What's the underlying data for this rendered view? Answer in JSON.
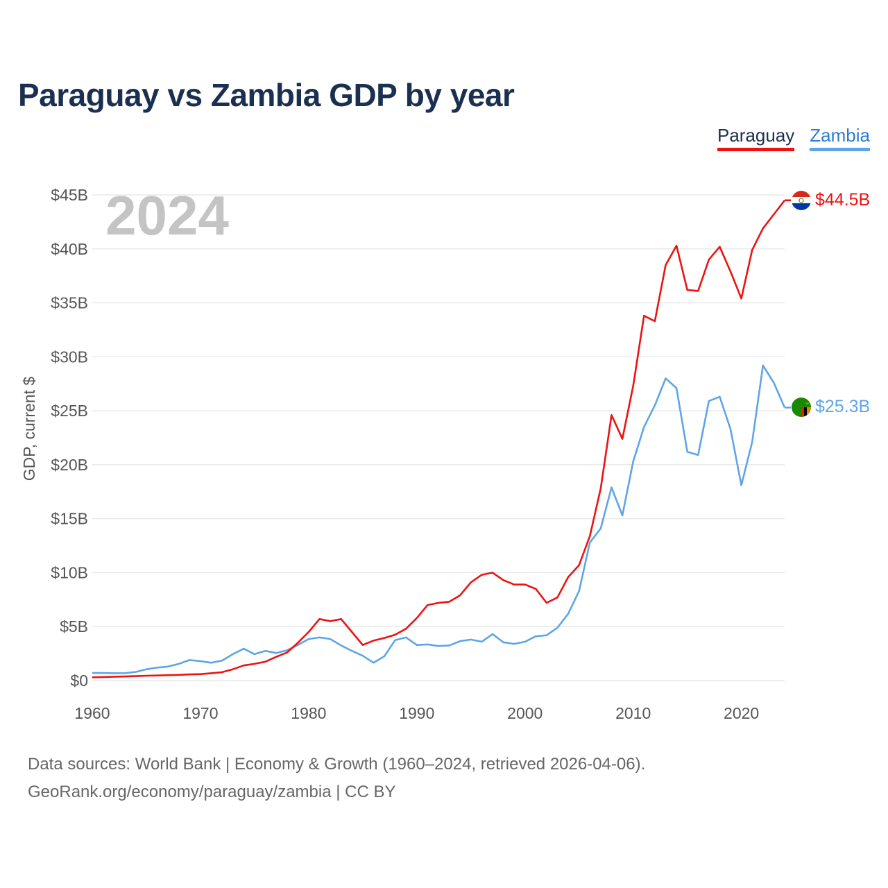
{
  "header": {
    "title": "Paraguay vs Zambia GDP by year"
  },
  "legend": {
    "paraguay": "Paraguay",
    "zambia": "Zambia"
  },
  "footer": {
    "line1": "Data sources: World Bank | Economy & Growth (1960–2024, retrieved 2026-04-06).",
    "line2": "GeoRank.org/economy/paraguay/zambia | CC BY"
  },
  "chart_data": {
    "type": "line",
    "title": "Paraguay vs Zambia GDP by year",
    "year_label": "2024",
    "xlabel": "",
    "ylabel": "GDP, current $",
    "xlim": [
      1960,
      2024
    ],
    "ylim": [
      0,
      45
    ],
    "x_ticks": [
      1960,
      1970,
      1980,
      1990,
      2000,
      2010,
      2020
    ],
    "y_ticks": [
      0,
      5,
      10,
      15,
      20,
      25,
      30,
      35,
      40,
      45
    ],
    "y_tick_labels": [
      "$0",
      "$5B",
      "$10B",
      "$15B",
      "$20B",
      "$25B",
      "$30B",
      "$35B",
      "$40B",
      "$45B"
    ],
    "x": [
      1960,
      1961,
      1962,
      1963,
      1964,
      1965,
      1966,
      1967,
      1968,
      1969,
      1970,
      1971,
      1972,
      1973,
      1974,
      1975,
      1976,
      1977,
      1978,
      1979,
      1980,
      1981,
      1982,
      1983,
      1984,
      1985,
      1986,
      1987,
      1988,
      1989,
      1990,
      1991,
      1992,
      1993,
      1994,
      1995,
      1996,
      1997,
      1998,
      1999,
      2000,
      2001,
      2002,
      2003,
      2004,
      2005,
      2006,
      2007,
      2008,
      2009,
      2010,
      2011,
      2012,
      2013,
      2014,
      2015,
      2016,
      2017,
      2018,
      2019,
      2020,
      2021,
      2022,
      2023,
      2024
    ],
    "series": [
      {
        "name": "Paraguay",
        "color": "#ee1111",
        "end_label": "$44.5B",
        "flag": "paraguay-flag",
        "values": [
          0.3,
          0.33,
          0.36,
          0.38,
          0.41,
          0.45,
          0.47,
          0.5,
          0.53,
          0.57,
          0.6,
          0.68,
          0.78,
          1.05,
          1.4,
          1.55,
          1.75,
          2.2,
          2.6,
          3.5,
          4.5,
          5.7,
          5.5,
          5.7,
          4.5,
          3.3,
          3.7,
          3.95,
          4.25,
          4.8,
          5.8,
          7.0,
          7.2,
          7.3,
          7.9,
          9.1,
          9.8,
          10.0,
          9.3,
          8.9,
          8.9,
          8.5,
          7.2,
          7.7,
          9.6,
          10.7,
          13.4,
          17.8,
          24.6,
          22.4,
          27.3,
          33.8,
          33.3,
          38.5,
          40.3,
          36.2,
          36.1,
          39.0,
          40.2,
          37.9,
          35.4,
          39.9,
          41.9,
          43.2,
          44.5
        ]
      },
      {
        "name": "Zambia",
        "color": "#5fa5e6",
        "end_label": "$25.3B",
        "flag": "zambia-flag",
        "values": [
          0.7,
          0.7,
          0.68,
          0.69,
          0.8,
          1.05,
          1.2,
          1.3,
          1.55,
          1.9,
          1.8,
          1.65,
          1.85,
          2.45,
          2.95,
          2.45,
          2.75,
          2.55,
          2.8,
          3.3,
          3.85,
          4.0,
          3.85,
          3.25,
          2.75,
          2.3,
          1.65,
          2.25,
          3.75,
          4.0,
          3.3,
          3.35,
          3.2,
          3.25,
          3.65,
          3.8,
          3.6,
          4.3,
          3.55,
          3.4,
          3.6,
          4.1,
          4.2,
          4.9,
          6.2,
          8.3,
          12.8,
          14.1,
          17.9,
          15.3,
          20.3,
          23.5,
          25.5,
          28.0,
          27.1,
          21.2,
          20.9,
          25.9,
          26.3,
          23.3,
          18.1,
          22.1,
          29.2,
          27.6,
          25.3
        ]
      }
    ]
  }
}
